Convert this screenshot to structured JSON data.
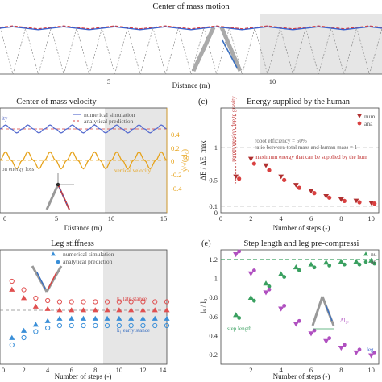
{
  "chart_data": [
    {
      "type": "line",
      "panel": "top",
      "title": "Center of mass motion",
      "xlabel": "Distance (m)",
      "x_ticks": [
        "5",
        "10"
      ],
      "xlim": [
        0,
        15
      ],
      "shaded_region": [
        10.2,
        15
      ],
      "series": [
        {
          "values_x": [
            0,
            0.5,
            1,
            1.5,
            2,
            2.5,
            3,
            3.5,
            4,
            4.5,
            5,
            5.5,
            6,
            6.5,
            7,
            7.5,
            8,
            8.5,
            9,
            9.5,
            10,
            10.5,
            11,
            11.5,
            12,
            12.5,
            13,
            13.5,
            14,
            14.5,
            15
          ],
          "values_y": [
            0,
            0.6,
            0,
            -0.6,
            0,
            0.6,
            0,
            -0.6,
            0,
            0.6,
            0,
            -0.6,
            0,
            0.6,
            0,
            -0.6,
            0,
            0.6,
            0,
            -0.6,
            0,
            0.6,
            0,
            -0.6,
            0,
            0.6,
            0,
            -0.6,
            0,
            0.6,
            0
          ]
        }
      ],
      "colors": {
        "numerical": "#3a5fcd",
        "analytical": "#d94040"
      }
    },
    {
      "type": "line",
      "panel": "b",
      "title": "Center of mass velocity",
      "xlabel": "Distance (m)",
      "x_ticks": [
        "0",
        "5",
        "10",
        "15"
      ],
      "xlim": [
        0,
        15
      ],
      "right_ylabel": "ẏ/√(gl₀)",
      "right_ticks": [
        "0.4",
        "0.2",
        "0",
        "-0.2",
        "-0.4"
      ],
      "legend": [
        "numerical simulation",
        "analytical prediction"
      ],
      "annotations": [
        "ity",
        "vertical velocity",
        "on energy loss"
      ],
      "shaded_region": [
        10.2,
        15
      ],
      "series": [
        {
          "name": "numerical simulation",
          "color": "#5a6fd0",
          "x": [
            0,
            0.5,
            1,
            1.5,
            2,
            2.5,
            3,
            3.5,
            4,
            4.5,
            5,
            5.5,
            6,
            6.5,
            7,
            7.5,
            8,
            8.5,
            9,
            9.5,
            10,
            10.5,
            11,
            11.5,
            12,
            12.5,
            13,
            13.5,
            14,
            14.5,
            15
          ],
          "y": [
            1.25,
            1.32,
            1.25,
            1.18,
            1.25,
            1.32,
            1.25,
            1.18,
            1.25,
            1.32,
            1.25,
            1.18,
            1.25,
            1.32,
            1.25,
            1.18,
            1.25,
            1.32,
            1.25,
            1.18,
            1.25,
            1.32,
            1.25,
            1.18,
            1.25,
            1.32,
            1.25,
            1.18,
            1.25,
            1.32,
            1.25
          ]
        },
        {
          "name": "vertical",
          "color": "#e6a21a",
          "x": [
            0,
            0.5,
            1,
            1.5,
            2,
            2.5,
            3,
            3.5,
            4,
            4.5,
            5,
            5.5,
            6,
            6.5,
            7,
            7.5,
            8,
            8.5,
            9,
            9.5,
            10,
            10.5,
            11,
            11.5,
            12,
            12.5,
            13,
            13.5,
            14,
            14.5,
            15
          ],
          "y": [
            0,
            0.25,
            0,
            -0.25,
            0,
            0.25,
            0,
            -0.25,
            0,
            0.25,
            0,
            -0.25,
            0,
            0.25,
            0,
            -0.25,
            0,
            0.25,
            0,
            -0.25,
            0,
            0.25,
            0,
            -0.25,
            0,
            0.25,
            0,
            -0.25,
            0,
            0.25,
            0
          ]
        }
      ]
    },
    {
      "type": "scatter",
      "panel": "c",
      "label": "(c)",
      "title": "Energy supplied by the human",
      "xlabel": "Number of steps (-)",
      "ylabel": "ΔE / ΔE_max",
      "x_ticks": [
        "0",
        "2",
        "4",
        "6",
        "8",
        "10"
      ],
      "y_ticks": [
        "1",
        "0.5",
        "0.1",
        "0"
      ],
      "xlim": [
        0,
        10.5
      ],
      "ylim": [
        0,
        1.6
      ],
      "legend": [
        "num",
        "ana"
      ],
      "annotations": [
        "robot efficiency = 50%",
        "ratio between total mass and human mass = 1",
        "maximum energy that can be supplied by the hum",
        "recompression due to gravity"
      ],
      "ref_lines": [
        1,
        0.1
      ],
      "series": [
        {
          "name": "numerical",
          "color": "#b03030",
          "marker": "triangle-down",
          "x": [
            1,
            2,
            3,
            4,
            5,
            6,
            7,
            8,
            9,
            10
          ],
          "y": [
            0.55,
            0.82,
            0.72,
            0.55,
            0.42,
            0.33,
            0.25,
            0.2,
            0.18,
            0.15
          ]
        },
        {
          "name": "analytical",
          "color": "#d94040",
          "marker": "circle",
          "x": [
            1,
            2,
            3,
            4,
            5,
            6,
            7,
            8,
            9,
            10
          ],
          "y": [
            0.52,
            0.75,
            0.65,
            0.5,
            0.38,
            0.3,
            0.23,
            0.18,
            0.16,
            0.14
          ]
        }
      ]
    },
    {
      "type": "scatter",
      "panel": "d",
      "title": "Leg stiffness",
      "xlabel": "Number of steps (-)",
      "x_ticks": [
        "0",
        "2",
        "4",
        "6",
        "8",
        "10",
        "12",
        "14"
      ],
      "xlim": [
        0,
        14
      ],
      "legend": [
        "numerical simulation",
        "analytical prediction"
      ],
      "annotations": [
        "k₂ late stance",
        "k₁ early stance"
      ],
      "shaded_region": [
        10,
        14
      ],
      "series": [
        {
          "name": "k2 numerical",
          "color": "#e05050",
          "marker": "triangle",
          "x": [
            1,
            2,
            3,
            4,
            5,
            6,
            7,
            8,
            9,
            10,
            11,
            12,
            13,
            14
          ],
          "y": [
            0.62,
            0.55,
            0.48,
            0.46,
            0.45,
            0.45,
            0.45,
            0.45,
            0.45,
            0.45,
            0.45,
            0.45,
            0.45,
            0.45
          ]
        },
        {
          "name": "k1 numerical",
          "color": "#3a8fd8",
          "marker": "triangle",
          "x": [
            1,
            2,
            3,
            4,
            5,
            6,
            7,
            8,
            9,
            10,
            11,
            12,
            13,
            14
          ],
          "y": [
            0.22,
            0.28,
            0.33,
            0.36,
            0.38,
            0.38,
            0.38,
            0.38,
            0.38,
            0.38,
            0.38,
            0.38,
            0.38,
            0.38
          ]
        }
      ]
    },
    {
      "type": "scatter",
      "panel": "e",
      "label": "(e)",
      "title": "Step length and leg pre-compressi",
      "xlabel": "Number of steps (-)",
      "ylabel": "lₛ / l₀",
      "x_ticks": [
        "2",
        "4",
        "6",
        "8",
        "10"
      ],
      "y_ticks": [
        "1.2",
        "1",
        "0.8",
        "0.6",
        "0.4",
        "0.2"
      ],
      "xlim": [
        0,
        10.5
      ],
      "ylim": [
        0.1,
        1.3
      ],
      "legend": [
        "nu",
        "an"
      ],
      "annotations": [
        "step length",
        "Δl₂ₒ",
        "leg"
      ],
      "series": [
        {
          "name": "step length",
          "color": "#3aa060",
          "marker": "triangle",
          "x": [
            1,
            2,
            3,
            4,
            5,
            6,
            7,
            8,
            9,
            10
          ],
          "y": [
            0.62,
            0.8,
            0.95,
            1.05,
            1.12,
            1.15,
            1.17,
            1.18,
            1.18,
            1.19
          ]
        },
        {
          "name": "pre-compression",
          "color": "#b050c0",
          "marker": "triangle-down",
          "x": [
            1,
            2,
            3,
            4,
            5,
            6,
            7,
            8,
            9,
            10
          ],
          "y": [
            1.25,
            1.05,
            0.85,
            0.68,
            0.52,
            0.42,
            0.34,
            0.27,
            0.22,
            0.19
          ]
        }
      ]
    }
  ]
}
